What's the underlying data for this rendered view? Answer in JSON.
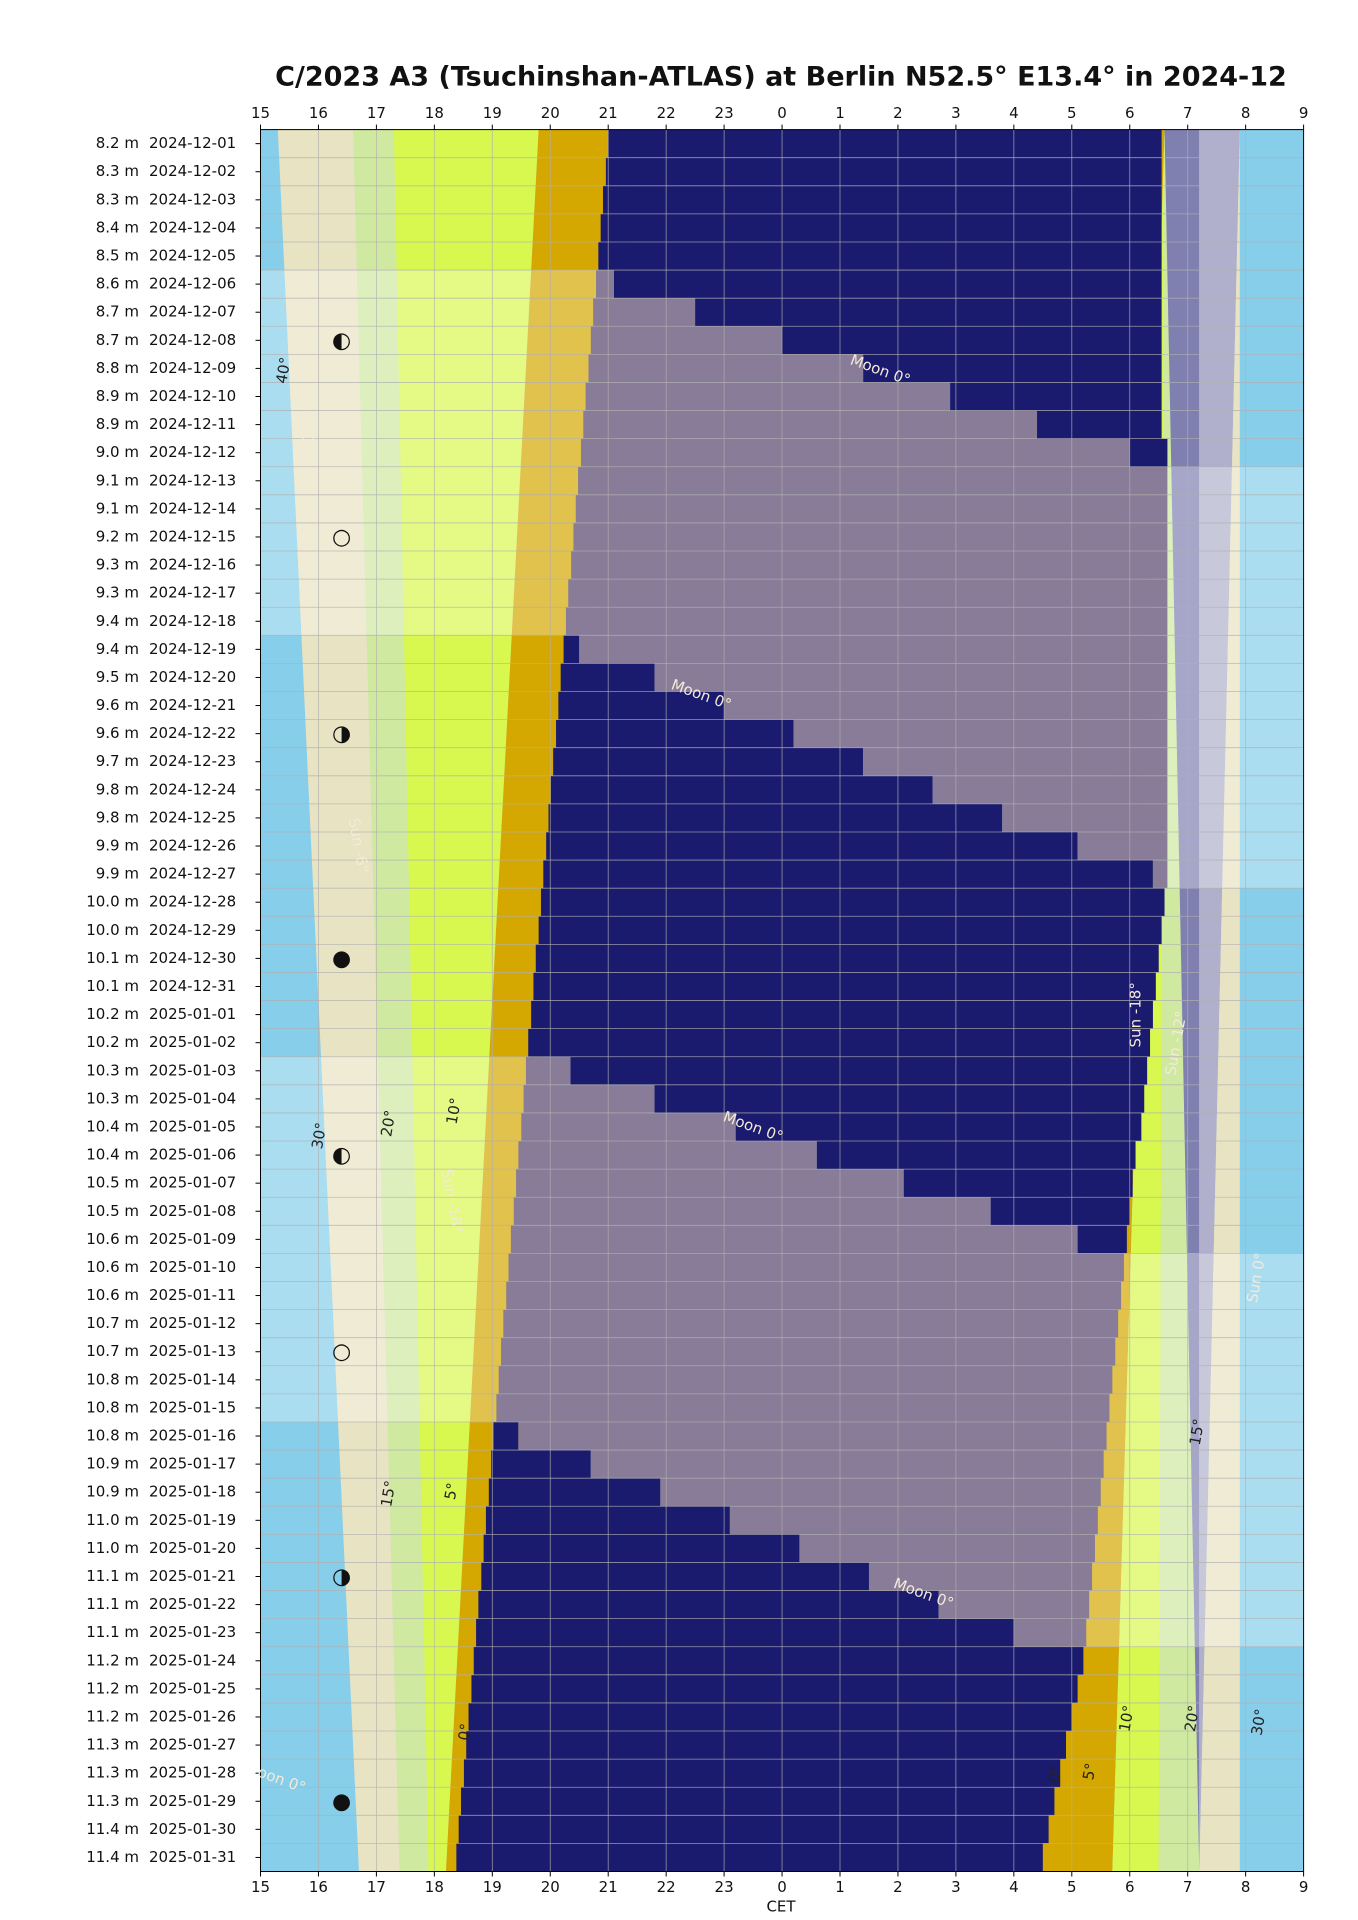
{
  "chart_data": {
    "type": "night-timeline",
    "title": "C/2023 A3 (Tsuchinshan-ATLAS) at Berlin N52.5° E13.4° in 2024-12",
    "x_label": "CET",
    "xlim": [
      15,
      33
    ],
    "xticks": [
      15,
      16,
      17,
      18,
      19,
      20,
      21,
      22,
      23,
      {
        "value": 24,
        "label": "0"
      },
      {
        "value": 25,
        "label": "1"
      },
      {
        "value": 26,
        "label": "2"
      },
      {
        "value": 27,
        "label": "3"
      },
      {
        "value": 28,
        "label": "4"
      },
      {
        "value": 29,
        "label": "5"
      },
      {
        "value": 30,
        "label": "6"
      },
      {
        "value": 31,
        "label": "7"
      },
      {
        "value": 32,
        "label": "8"
      },
      {
        "value": 33,
        "label": "9"
      }
    ],
    "grid": true,
    "background": "#c2d9d9",
    "dark_color": "#1a1a6e",
    "moon_color": "#887c98",
    "bands": [
      {
        "color": "#87ceeb",
        "top": [
          15,
          15.3
        ],
        "bottom": [
          15,
          16.7
        ]
      },
      {
        "color": "#e8e3c2",
        "top": [
          15.3,
          16.6
        ],
        "bottom": [
          16.7,
          17.4
        ]
      },
      {
        "color": "#cfe9a0",
        "top": [
          16.6,
          17.3
        ],
        "bottom": [
          17.4,
          17.9
        ]
      },
      {
        "color": "#d8f850",
        "top": [
          17.3,
          19.8
        ],
        "bottom": [
          17.9,
          18.2
        ]
      },
      {
        "color": "#d4a800",
        "top": [
          19.8,
          21.5
        ],
        "bottom": [
          18.2,
          18.8
        ]
      },
      {
        "color": "#d4a800",
        "top": [
          30.5,
          30.6
        ],
        "bottom": [
          28.4,
          29.7
        ]
      },
      {
        "color": "#d8f850",
        "top": [
          30.6,
          30.6
        ],
        "bottom": [
          29.7,
          30.5
        ]
      },
      {
        "color": "#cfe9a0",
        "top": [
          30.6,
          30.6
        ],
        "bottom": [
          30.5,
          31.2
        ]
      },
      {
        "color": "#7f80b0",
        "top": [
          30.6,
          31.2
        ],
        "bottom": [
          31.2,
          31.2
        ]
      },
      {
        "color": "#b0b0cc",
        "top": [
          31.2,
          31.9
        ],
        "bottom": [
          31.2,
          31.2
        ]
      },
      {
        "color": "#e8e3c2",
        "top": [
          31.9,
          31.9
        ],
        "bottom": [
          31.2,
          31.9
        ]
      },
      {
        "color": "#87ceeb",
        "top": [
          31.9,
          33
        ],
        "bottom": [
          31.9,
          33
        ]
      }
    ],
    "rows": [
      {
        "mag": "8.2 m",
        "date": "2024-12-01",
        "dark": [
          21.0,
          30.55
        ]
      },
      {
        "mag": "8.3 m",
        "date": "2024-12-02",
        "dark": [
          20.96,
          30.55
        ]
      },
      {
        "mag": "8.3 m",
        "date": "2024-12-03",
        "dark": [
          20.91,
          30.55
        ]
      },
      {
        "mag": "8.4 m",
        "date": "2024-12-04",
        "dark": [
          20.87,
          30.55
        ]
      },
      {
        "mag": "8.5 m",
        "date": "2024-12-05",
        "dark": [
          20.83,
          30.55
        ]
      },
      {
        "mag": "8.6 m",
        "date": "2024-12-06",
        "dark": [
          20.79,
          30.55
        ],
        "moon": [
          15,
          21.1
        ]
      },
      {
        "mag": "8.7 m",
        "date": "2024-12-07",
        "dark": [
          20.74,
          30.55
        ],
        "moon": [
          15,
          22.5
        ]
      },
      {
        "mag": "8.7 m",
        "date": "2024-12-08",
        "dark": [
          20.7,
          30.55
        ],
        "moon": [
          15,
          24.0
        ],
        "moon_phase": "◐"
      },
      {
        "mag": "8.8 m",
        "date": "2024-12-09",
        "dark": [
          20.66,
          30.55
        ],
        "moon": [
          15,
          25.4
        ]
      },
      {
        "mag": "8.9 m",
        "date": "2024-12-10",
        "dark": [
          20.61,
          30.55
        ],
        "moon": [
          15,
          26.9
        ]
      },
      {
        "mag": "8.9 m",
        "date": "2024-12-11",
        "dark": [
          20.57,
          30.55
        ],
        "moon": [
          15,
          28.4
        ]
      },
      {
        "mag": "9.0 m",
        "date": "2024-12-12",
        "dark": [
          20.53,
          30.65
        ],
        "moon": [
          15,
          30.0
        ]
      },
      {
        "mag": "9.1 m",
        "date": "2024-12-13",
        "dark": [
          20.48,
          30.65
        ],
        "moon": [
          15,
          33
        ]
      },
      {
        "mag": "9.1 m",
        "date": "2024-12-14",
        "dark": [
          20.44,
          30.65
        ],
        "moon": [
          15,
          33
        ]
      },
      {
        "mag": "9.2 m",
        "date": "2024-12-15",
        "dark": [
          20.4,
          30.65
        ],
        "moon": [
          15,
          33
        ],
        "moon_phase": "○"
      },
      {
        "mag": "9.3 m",
        "date": "2024-12-16",
        "dark": [
          20.36,
          30.65
        ],
        "moon": [
          15,
          33
        ]
      },
      {
        "mag": "9.3 m",
        "date": "2024-12-17",
        "dark": [
          20.31,
          30.65
        ],
        "moon": [
          15,
          33
        ]
      },
      {
        "mag": "9.4 m",
        "date": "2024-12-18",
        "dark": [
          20.27,
          30.65
        ],
        "moon": [
          15,
          33
        ]
      },
      {
        "mag": "9.4 m",
        "date": "2024-12-19",
        "dark": [
          20.23,
          30.65
        ],
        "moon": [
          20.5,
          33
        ]
      },
      {
        "mag": "9.5 m",
        "date": "2024-12-20",
        "dark": [
          20.18,
          30.65
        ],
        "moon": [
          21.8,
          33
        ]
      },
      {
        "mag": "9.6 m",
        "date": "2024-12-21",
        "dark": [
          20.14,
          30.65
        ],
        "moon": [
          23.0,
          33
        ]
      },
      {
        "mag": "9.6 m",
        "date": "2024-12-22",
        "dark": [
          20.1,
          30.65
        ],
        "moon": [
          24.2,
          33
        ],
        "moon_phase": "◑"
      },
      {
        "mag": "9.7 m",
        "date": "2024-12-23",
        "dark": [
          20.05,
          30.65
        ],
        "moon": [
          25.4,
          33
        ]
      },
      {
        "mag": "9.8 m",
        "date": "2024-12-24",
        "dark": [
          20.01,
          30.65
        ],
        "moon": [
          26.6,
          33
        ]
      },
      {
        "mag": "9.8 m",
        "date": "2024-12-25",
        "dark": [
          19.97,
          30.65
        ],
        "moon": [
          27.8,
          33
        ]
      },
      {
        "mag": "9.9 m",
        "date": "2024-12-26",
        "dark": [
          19.93,
          30.65
        ],
        "moon": [
          29.1,
          33
        ]
      },
      {
        "mag": "9.9 m",
        "date": "2024-12-27",
        "dark": [
          19.88,
          30.65
        ],
        "moon": [
          30.4,
          33
        ]
      },
      {
        "mag": "10.0 m",
        "date": "2024-12-28",
        "dark": [
          19.84,
          30.6
        ]
      },
      {
        "mag": "10.0 m",
        "date": "2024-12-29",
        "dark": [
          19.8,
          30.55
        ]
      },
      {
        "mag": "10.1 m",
        "date": "2024-12-30",
        "dark": [
          19.75,
          30.5
        ],
        "moon_phase": "●"
      },
      {
        "mag": "10.1 m",
        "date": "2024-12-31",
        "dark": [
          19.71,
          30.45
        ]
      },
      {
        "mag": "10.2 m",
        "date": "2025-01-01",
        "dark": [
          19.67,
          30.4
        ]
      },
      {
        "mag": "10.2 m",
        "date": "2025-01-02",
        "dark": [
          19.62,
          30.35
        ]
      },
      {
        "mag": "10.3 m",
        "date": "2025-01-03",
        "dark": [
          19.58,
          30.3
        ],
        "moon": [
          15,
          20.35
        ]
      },
      {
        "mag": "10.3 m",
        "date": "2025-01-04",
        "dark": [
          19.54,
          30.25
        ],
        "moon": [
          15,
          21.8
        ]
      },
      {
        "mag": "10.4 m",
        "date": "2025-01-05",
        "dark": [
          19.5,
          30.2
        ],
        "moon": [
          15,
          23.2
        ]
      },
      {
        "mag": "10.4 m",
        "date": "2025-01-06",
        "dark": [
          19.45,
          30.1
        ],
        "moon": [
          15,
          24.6
        ],
        "moon_phase": "◐"
      },
      {
        "mag": "10.5 m",
        "date": "2025-01-07",
        "dark": [
          19.41,
          30.05
        ],
        "moon": [
          15,
          26.1
        ]
      },
      {
        "mag": "10.5 m",
        "date": "2025-01-08",
        "dark": [
          19.37,
          30.0
        ],
        "moon": [
          15,
          27.6
        ]
      },
      {
        "mag": "10.6 m",
        "date": "2025-01-09",
        "dark": [
          19.32,
          29.95
        ],
        "moon": [
          15,
          29.1
        ]
      },
      {
        "mag": "10.6 m",
        "date": "2025-01-10",
        "dark": [
          19.28,
          29.9
        ],
        "moon": [
          15,
          33
        ]
      },
      {
        "mag": "10.6 m",
        "date": "2025-01-11",
        "dark": [
          19.24,
          29.85
        ],
        "moon": [
          15,
          33
        ]
      },
      {
        "mag": "10.7 m",
        "date": "2025-01-12",
        "dark": [
          19.19,
          29.8
        ],
        "moon": [
          15,
          33
        ]
      },
      {
        "mag": "10.7 m",
        "date": "2025-01-13",
        "dark": [
          19.15,
          29.75
        ],
        "moon": [
          15,
          33
        ],
        "moon_phase": "○"
      },
      {
        "mag": "10.8 m",
        "date": "2025-01-14",
        "dark": [
          19.11,
          29.7
        ],
        "moon": [
          15,
          33
        ]
      },
      {
        "mag": "10.8 m",
        "date": "2025-01-15",
        "dark": [
          19.07,
          29.65
        ],
        "moon": [
          15,
          33
        ]
      },
      {
        "mag": "10.8 m",
        "date": "2025-01-16",
        "dark": [
          19.02,
          29.6
        ],
        "moon": [
          19.45,
          33
        ]
      },
      {
        "mag": "10.9 m",
        "date": "2025-01-17",
        "dark": [
          18.98,
          29.55
        ],
        "moon": [
          20.7,
          33
        ]
      },
      {
        "mag": "10.9 m",
        "date": "2025-01-18",
        "dark": [
          18.94,
          29.5
        ],
        "moon": [
          21.9,
          33
        ]
      },
      {
        "mag": "11.0 m",
        "date": "2025-01-19",
        "dark": [
          18.89,
          29.45
        ],
        "moon": [
          23.1,
          33
        ]
      },
      {
        "mag": "11.0 m",
        "date": "2025-01-20",
        "dark": [
          18.85,
          29.4
        ],
        "moon": [
          24.3,
          33
        ]
      },
      {
        "mag": "11.1 m",
        "date": "2025-01-21",
        "dark": [
          18.81,
          29.35
        ],
        "moon": [
          25.5,
          33
        ],
        "moon_phase": "◑"
      },
      {
        "mag": "11.1 m",
        "date": "2025-01-22",
        "dark": [
          18.76,
          29.3
        ],
        "moon": [
          26.7,
          33
        ]
      },
      {
        "mag": "11.1 m",
        "date": "2025-01-23",
        "dark": [
          18.72,
          29.25
        ],
        "moon": [
          28.0,
          33
        ]
      },
      {
        "mag": "11.2 m",
        "date": "2025-01-24",
        "dark": [
          18.68,
          29.2
        ]
      },
      {
        "mag": "11.2 m",
        "date": "2025-01-25",
        "dark": [
          18.64,
          29.1
        ]
      },
      {
        "mag": "11.2 m",
        "date": "2025-01-26",
        "dark": [
          18.59,
          29.0
        ]
      },
      {
        "mag": "11.3 m",
        "date": "2025-01-27",
        "dark": [
          18.55,
          28.9
        ]
      },
      {
        "mag": "11.3 m",
        "date": "2025-01-28",
        "dark": [
          18.51,
          28.8
        ]
      },
      {
        "mag": "11.3 m",
        "date": "2025-01-29",
        "dark": [
          18.46,
          28.7
        ],
        "moon_phase": "●"
      },
      {
        "mag": "11.4 m",
        "date": "2025-01-30",
        "dark": [
          18.42,
          28.6
        ]
      },
      {
        "mag": "11.4 m",
        "date": "2025-01-31",
        "dark": [
          18.38,
          28.5
        ]
      }
    ],
    "annotations": [
      "40°",
      "Sun 0°",
      "Moon 0°",
      "Moon 0°",
      "Sun -6°",
      "Sun -18°",
      "Sun -12°",
      "30°",
      "20°",
      "10°",
      "Moon 0°",
      "Sun -18°",
      "Sun 0°",
      "15°",
      "15°",
      "5°",
      "Moon 0°",
      "10°",
      "20°",
      "30°",
      "0°",
      "0°",
      "5°",
      "oon 0°"
    ]
  }
}
